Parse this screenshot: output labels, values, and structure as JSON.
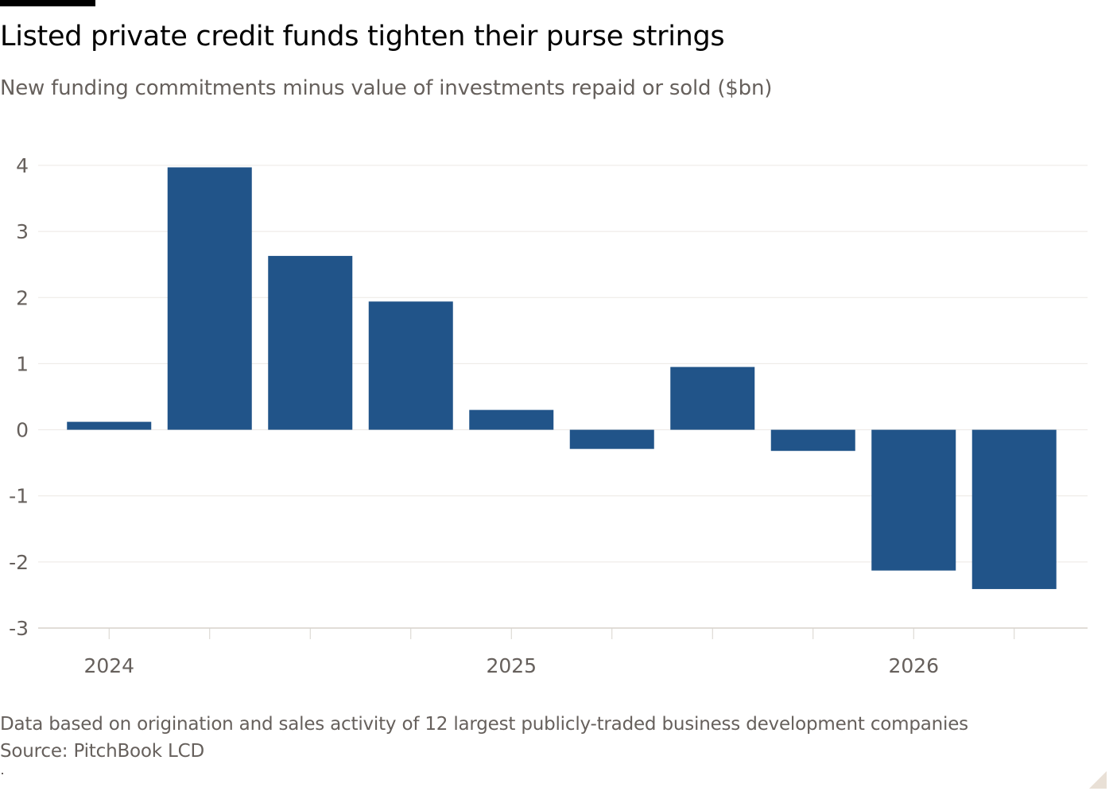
{
  "header": {
    "title": "Listed private credit funds tighten their purse strings",
    "subtitle": "New funding commitments minus value of investments repaid or sold ($bn)"
  },
  "footer": {
    "note": "Data based on origination and sales activity of 12 largest publicly-traded business development companies",
    "source": "Source: PitchBook LCD"
  },
  "colors": {
    "bar": "#215489",
    "grid": "#ece8e4",
    "axis_text": "#66605c",
    "baseline": "#d7d2cc"
  },
  "chart_data": {
    "type": "bar",
    "title": "Listed private credit funds tighten their purse strings",
    "subtitle": "New funding commitments minus value of investments repaid or sold ($bn)",
    "xlabel": "",
    "ylabel": "",
    "categories": [
      "2024 Q1",
      "2024 Q2",
      "2024 Q3",
      "2024 Q4",
      "2025 Q1",
      "2025 Q2",
      "2025 Q3",
      "2025 Q4",
      "2026 Q1",
      "2026 Q2"
    ],
    "values": [
      0.12,
      3.97,
      2.63,
      1.94,
      0.3,
      -0.29,
      0.95,
      -0.32,
      -2.13,
      -2.41
    ],
    "x_tick_labels": [
      {
        "label": "2024",
        "index": 0
      },
      {
        "label": "2025",
        "index": 4
      },
      {
        "label": "2026",
        "index": 8
      }
    ],
    "ylim": [
      -3,
      4
    ],
    "yticks": [
      4,
      3,
      2,
      1,
      0,
      -1,
      -2,
      -3
    ],
    "grid": true,
    "legend": "none"
  }
}
